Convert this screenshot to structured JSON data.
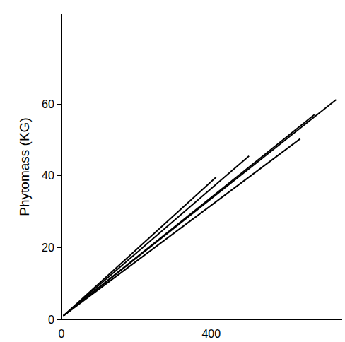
{
  "chart_data": {
    "type": "line",
    "y_label": "Phytomass (KG)",
    "series": [
      {
        "color": "#000000",
        "x": [
          5,
          734
        ],
        "values": [
          1,
          61.2
        ]
      },
      {
        "color": "#000000",
        "x": [
          5,
          676
        ],
        "values": [
          1,
          57
        ]
      },
      {
        "color": "#000000",
        "x": [
          5,
          638
        ],
        "values": [
          1,
          50.3
        ]
      },
      {
        "color": "#000000",
        "x": [
          5,
          501
        ],
        "values": [
          1,
          45.5
        ]
      },
      {
        "color": "#000000",
        "x": [
          5,
          413
        ],
        "values": [
          1,
          39.6
        ]
      }
    ],
    "xlim": [
      0,
      750
    ],
    "xticks": [
      0,
      400
    ],
    "ylim": [
      0,
      85
    ],
    "yticks": [
      0,
      20,
      40,
      60
    ],
    "grid": false
  }
}
